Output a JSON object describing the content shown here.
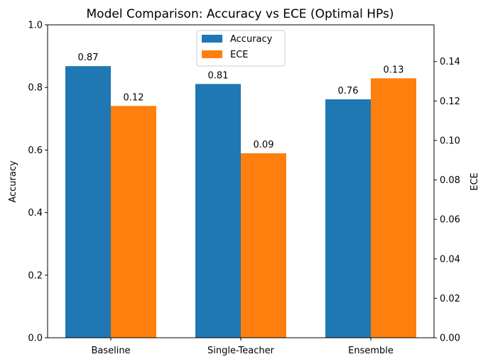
{
  "chart_data": {
    "type": "bar",
    "title": "Model Comparison: Accuracy vs ECE (Optimal HPs)",
    "categories": [
      "Baseline",
      "Single-Teacher",
      "Ensemble"
    ],
    "series": [
      {
        "name": "Accuracy",
        "axis": "left",
        "color": "#1f77b4",
        "values": [
          0.868,
          0.811,
          0.762
        ],
        "labels": [
          "0.87",
          "0.81",
          "0.76"
        ]
      },
      {
        "name": "ECE",
        "axis": "right",
        "color": "#ff7f0e",
        "values": [
          0.1175,
          0.0935,
          0.1315
        ],
        "labels": [
          "0.12",
          "0.09",
          "0.13"
        ]
      }
    ],
    "ylabel_left": "Accuracy",
    "ylabel_right": "ECE",
    "ylim_left": [
      0,
      1.0
    ],
    "ylim_right": [
      0,
      0.1586
    ],
    "yticks_left": [
      "0.0",
      "0.2",
      "0.4",
      "0.6",
      "0.8",
      "1.0"
    ],
    "yticks_right": [
      "0.00",
      "0.02",
      "0.04",
      "0.06",
      "0.08",
      "0.10",
      "0.12",
      "0.14"
    ],
    "legend_position": "top-center",
    "grid": false
  }
}
